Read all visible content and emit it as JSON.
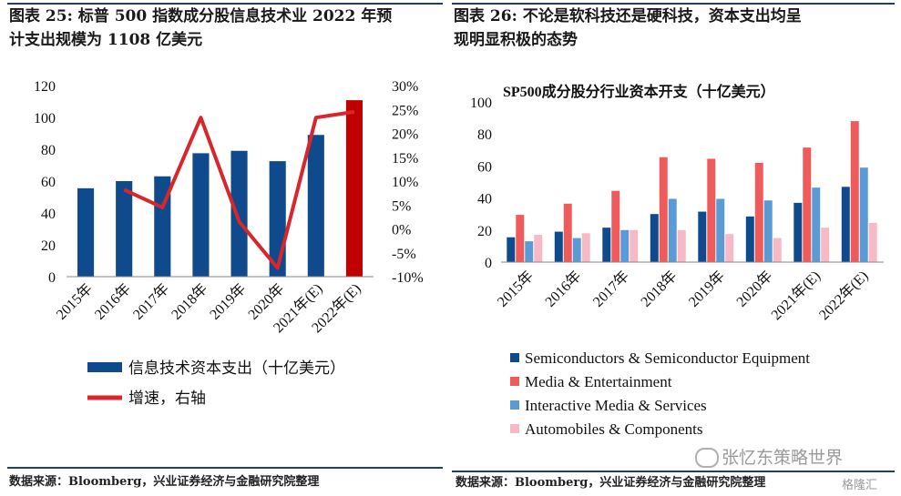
{
  "left": {
    "title_line1": "图表 25:  标普 500 指数成分股信息技术业 2022 年预",
    "title_line2": "计支出规模为 1108 亿美元",
    "source": "数据来源：Bloomberg，兴业证券经济与金融研究院整理"
  },
  "right": {
    "title_line1": "图表 26:  不论是软科技还是硬科技，资本支出均呈",
    "title_line2": "现明显积极的态势",
    "source": "数据来源：Bloomberg，兴业证券经济与金融研究院整理"
  },
  "watermark": {
    "text": "张忆东策略世界",
    "corner": "格隆汇"
  },
  "colors": {
    "navy": "#0e4a8c",
    "red": "#d9262b",
    "darkred": "#c00000",
    "salmon": "#ef5b5b",
    "lightblue": "#5b9bd5",
    "pink": "#f7b9c5",
    "rule": "#1f3e77"
  },
  "chart_data": [
    {
      "type": "bar",
      "categories": [
        "2015年",
        "2016年",
        "2017年",
        "2018年",
        "2019年",
        "2020年",
        "2021年(E)",
        "2022年(E)"
      ],
      "y_ticks": [
        "0",
        "20",
        "40",
        "60",
        "80",
        "100",
        "120"
      ],
      "y2_ticks": [
        "-10%",
        "-5%",
        "0%",
        "5%",
        "10%",
        "15%",
        "20%",
        "25%",
        "30%"
      ],
      "ylim": [
        0,
        120
      ],
      "y2lim": [
        -10,
        30
      ],
      "series": [
        {
          "name": "信息技术资本支出（十亿美元）",
          "type": "bar",
          "axis": "left",
          "values": [
            55.5,
            60,
            63,
            77.5,
            79,
            72.5,
            89,
            110.8
          ],
          "colors": [
            "navy",
            "navy",
            "navy",
            "navy",
            "navy",
            "navy",
            "navy",
            "darkred"
          ]
        },
        {
          "name": "增速，右轴",
          "type": "line",
          "axis": "right",
          "values": [
            null,
            8.2,
            4.5,
            23.3,
            1.5,
            -8.2,
            23.3,
            24.5
          ]
        }
      ],
      "legend": "bottom"
    },
    {
      "type": "bar",
      "title": "SP500成分股分行业资本开支（十亿美元）",
      "categories": [
        "2015年",
        "2016年",
        "2017年",
        "2018年",
        "2019年",
        "2020年",
        "2021年(E)",
        "2022年(E)"
      ],
      "y_ticks": [
        "0",
        "20",
        "40",
        "60",
        "80",
        "100"
      ],
      "ylim": [
        0,
        100
      ],
      "series": [
        {
          "name": "Semiconductors & Semiconductor Equipment",
          "color": "navy",
          "values": [
            15.5,
            19,
            21.5,
            30,
            31.5,
            28.5,
            37,
            47
          ]
        },
        {
          "name": "Media & Entertainment",
          "color": "salmon",
          "values": [
            29.5,
            36.5,
            44.5,
            65.5,
            64.5,
            62,
            71.5,
            88
          ]
        },
        {
          "name": "Interactive Media & Services",
          "color": "lightblue",
          "values": [
            13,
            15,
            20,
            39.5,
            39.5,
            38.5,
            46.5,
            59
          ]
        },
        {
          "name": "Automobiles & Components",
          "color": "pink",
          "values": [
            17,
            18,
            20,
            20,
            17.5,
            15,
            21.5,
            24.5
          ]
        }
      ],
      "legend": "bottom"
    }
  ]
}
